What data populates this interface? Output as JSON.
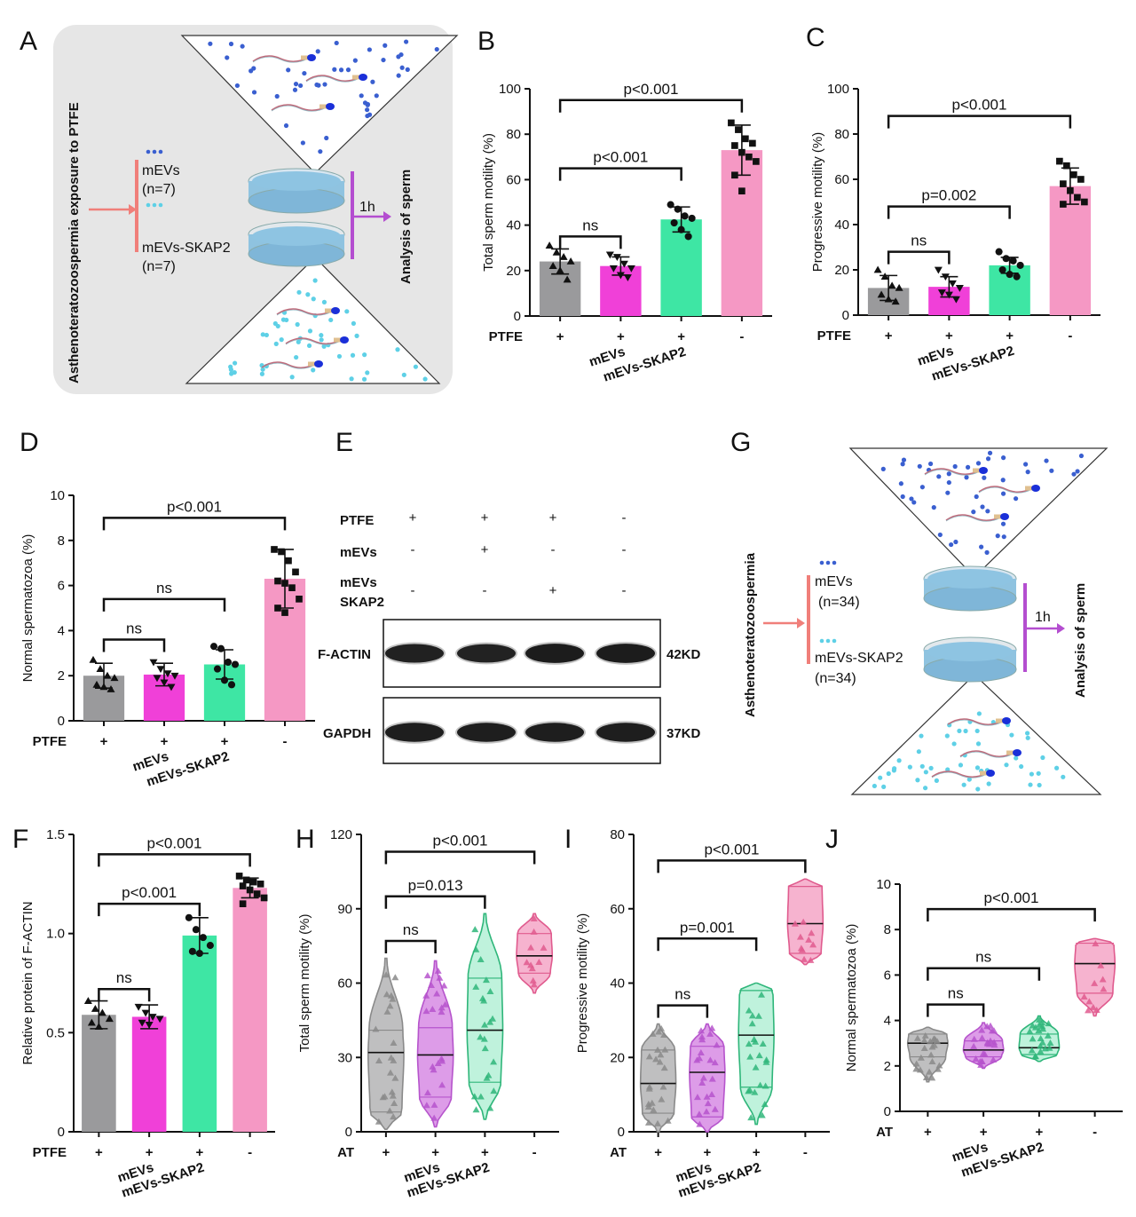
{
  "colors": {
    "PTFE": "#9a9a9c",
    "mEVs": "#f040d8",
    "mEVs-SKAP2": "#3ee6a4",
    "control": "#f598c4",
    "vGray": "#bfbfc0",
    "vPurple": "#dd9ce8",
    "vGreen": "#bff2dc",
    "vPink": "#f6b3cf",
    "vGrayEdge": "#8a8a8a",
    "vPurpleEdge": "#b654cc",
    "vGreenEdge": "#2fb67a",
    "vPinkEdge": "#e05b8e"
  },
  "panels": {
    "A": "A",
    "B": "B",
    "C": "C",
    "D": "D",
    "E": "E",
    "F": "F",
    "G": "G",
    "H": "H",
    "I": "I",
    "J": "J"
  },
  "diagramA": {
    "side_title": "Asthenoteratozoospermia exposure to PTFE",
    "group1": "mEVs",
    "group1_n": "(n=7)",
    "group2": "mEVs-SKAP2",
    "group2_n": "(n=7)",
    "time": "1h",
    "result": "Analysis of sperm"
  },
  "diagramG": {
    "side_title": "Asthenoteratozoospermia",
    "group1": "mEVs",
    "group1_n": "(n=34)",
    "group2": "mEVs-SKAP2",
    "group2_n": "(n=34)",
    "time": "1h",
    "result": "Analysis of sperm"
  },
  "blotE": {
    "rows": [
      {
        "label": "PTFE",
        "signs": [
          "+",
          "+",
          "+",
          "-"
        ]
      },
      {
        "label": "mEVs",
        "signs": [
          "-",
          "+",
          "-",
          "-"
        ]
      },
      {
        "label": "mEVs",
        "label2": "SKAP2",
        "signs": [
          "-",
          "-",
          "+",
          "-"
        ]
      }
    ],
    "bands": [
      {
        "label": "F-ACTIN",
        "size": "42KD",
        "intensity": [
          0.8,
          0.75,
          0.95,
          0.95
        ]
      },
      {
        "label": "GAPDH",
        "size": "37KD",
        "intensity": [
          0.9,
          0.9,
          0.9,
          0.9
        ]
      }
    ]
  },
  "chart_data": [
    {
      "panel": "B",
      "type": "bar",
      "ylabel": "Total sperm motility (%)",
      "ylim": [
        0,
        100
      ],
      "yticks": [
        0,
        20,
        40,
        60,
        80,
        100
      ],
      "condition_label": "PTFE",
      "condition_signs": [
        "+",
        "+",
        "+",
        "-"
      ],
      "categories": [
        "",
        "mEVs",
        "mEVs-SKAP2",
        ""
      ],
      "values": [
        24,
        22,
        42.5,
        73
      ],
      "errors": [
        5.5,
        4,
        5.5,
        11
      ],
      "points": [
        [
          31,
          28,
          26,
          24,
          22,
          20,
          16
        ],
        [
          27,
          26,
          23,
          21,
          21,
          18,
          17
        ],
        [
          49,
          47,
          44,
          43,
          41,
          38,
          35
        ],
        [
          85,
          82,
          78,
          76,
          75,
          72,
          70,
          68,
          62,
          55
        ]
      ],
      "markers": [
        "triangle",
        "triangle-down",
        "circle",
        "square"
      ],
      "comparisons": [
        {
          "a": 0,
          "b": 1,
          "label": "ns",
          "y": 35
        },
        {
          "a": 0,
          "b": 2,
          "label": "p<0.001",
          "y": 65
        },
        {
          "a": 0,
          "b": 3,
          "label": "p<0.001",
          "y": 95
        }
      ]
    },
    {
      "panel": "C",
      "type": "bar",
      "ylabel": "Progressive motility (%)",
      "ylim": [
        0,
        100
      ],
      "yticks": [
        0,
        20,
        40,
        60,
        80,
        100
      ],
      "condition_label": "PTFE",
      "condition_signs": [
        "+",
        "+",
        "+",
        "-"
      ],
      "categories": [
        "",
        "mEVs",
        "mEVs-SKAP2",
        ""
      ],
      "values": [
        12,
        12.5,
        22,
        57
      ],
      "errors": [
        5.5,
        4.5,
        3.5,
        8
      ],
      "points": [
        [
          20,
          17,
          13,
          12,
          9,
          7,
          6
        ],
        [
          20,
          17,
          14,
          12,
          10,
          9,
          7
        ],
        [
          28,
          25,
          24,
          22,
          20,
          18,
          17
        ],
        [
          68,
          66,
          62,
          60,
          58,
          55,
          52,
          50,
          49
        ]
      ],
      "markers": [
        "triangle",
        "triangle-down",
        "circle",
        "square"
      ],
      "comparisons": [
        {
          "a": 0,
          "b": 1,
          "label": "ns",
          "y": 28
        },
        {
          "a": 0,
          "b": 2,
          "label": "p=0.002",
          "y": 48
        },
        {
          "a": 0,
          "b": 3,
          "label": "p<0.001",
          "y": 88
        }
      ]
    },
    {
      "panel": "D",
      "type": "bar",
      "ylabel": "Normal spermatozoa (%)",
      "ylim": [
        0,
        10
      ],
      "yticks": [
        0,
        2,
        4,
        6,
        8,
        10
      ],
      "condition_label": "PTFE",
      "condition_signs": [
        "+",
        "+",
        "+",
        "-"
      ],
      "categories": [
        "",
        "mEVs",
        "mEVs-SKAP2",
        ""
      ],
      "values": [
        2,
        2.05,
        2.5,
        6.3
      ],
      "errors": [
        0.55,
        0.5,
        0.65,
        1.3
      ],
      "points": [
        [
          2.7,
          2.3,
          2.0,
          1.9,
          1.6,
          1.5,
          1.4
        ],
        [
          2.6,
          2.3,
          2.1,
          2.0,
          1.9,
          1.7,
          1.5
        ],
        [
          3.3,
          3.2,
          2.6,
          2.5,
          2.3,
          1.8,
          1.6
        ],
        [
          7.6,
          7.5,
          7.1,
          6.6,
          6.2,
          6.1,
          5.9,
          5.4,
          5.0,
          4.8
        ]
      ],
      "markers": [
        "triangle",
        "triangle-down",
        "circle",
        "square"
      ],
      "comparisons": [
        {
          "a": 0,
          "b": 1,
          "label": "ns",
          "y": 3.6
        },
        {
          "a": 0,
          "b": 2,
          "label": "ns",
          "y": 5.4
        },
        {
          "a": 0,
          "b": 3,
          "label": "p<0.001",
          "y": 9.0
        }
      ]
    },
    {
      "panel": "F",
      "type": "bar",
      "ylabel": "Relative protein of F-ACTIN",
      "ylim": [
        0,
        1.5
      ],
      "yticks": [
        0,
        0.5,
        1.0,
        1.5
      ],
      "yticklabels": [
        "0",
        "0.5",
        "1.0",
        "1.5"
      ],
      "condition_label": "PTFE",
      "condition_signs": [
        "+",
        "+",
        "+",
        "-"
      ],
      "categories": [
        "",
        "mEVs",
        "mEVs-SKAP2",
        ""
      ],
      "values": [
        0.59,
        0.58,
        0.99,
        1.23
      ],
      "errors": [
        0.07,
        0.06,
        0.09,
        0.05
      ],
      "points": [
        [
          0.66,
          0.62,
          0.6,
          0.57,
          0.55,
          0.53
        ],
        [
          0.63,
          0.6,
          0.58,
          0.57,
          0.55,
          0.54
        ],
        [
          1.08,
          1.02,
          0.98,
          0.94,
          0.91,
          0.9
        ],
        [
          1.29,
          1.27,
          1.26,
          1.25,
          1.24,
          1.22,
          1.2,
          1.18,
          1.15
        ]
      ],
      "markers": [
        "triangle",
        "triangle-down",
        "circle",
        "square"
      ],
      "comparisons": [
        {
          "a": 0,
          "b": 1,
          "label": "ns",
          "y": 0.72
        },
        {
          "a": 0,
          "b": 2,
          "label": "p<0.001",
          "y": 1.15
        },
        {
          "a": 0,
          "b": 3,
          "label": "p<0.001",
          "y": 1.4
        }
      ]
    },
    {
      "panel": "H",
      "type": "violin",
      "ylabel": "Total sperm motility (%)",
      "ylim": [
        0,
        120
      ],
      "yticks": [
        0,
        30,
        60,
        90,
        120
      ],
      "condition_label": "AT",
      "condition_signs": [
        "+",
        "+",
        "+",
        "-"
      ],
      "categories": [
        "",
        "mEVs",
        "mEVs-SKAP2",
        ""
      ],
      "min": [
        1,
        2,
        5,
        56
      ],
      "max": [
        70,
        69,
        88,
        88
      ],
      "q1": [
        8,
        14,
        20,
        64
      ],
      "median": [
        32,
        31,
        41,
        71
      ],
      "q3": [
        41,
        42,
        62,
        80
      ],
      "comparisons": [
        {
          "a": 0,
          "b": 1,
          "label": "ns",
          "y": 77
        },
        {
          "a": 0,
          "b": 2,
          "label": "p=0.013",
          "y": 95
        },
        {
          "a": 0,
          "b": 3,
          "label": "p<0.001",
          "y": 113
        }
      ]
    },
    {
      "panel": "I",
      "type": "violin",
      "ylabel": "Progressive motility (%)",
      "ylim": [
        0,
        80
      ],
      "yticks": [
        0,
        20,
        40,
        60,
        80
      ],
      "condition_label": "AT",
      "condition_signs": [
        "+",
        "+",
        "+",
        "-"
      ],
      "categories": [
        "",
        "mEVs",
        "mEVs-SKAP2",
        ""
      ],
      "min": [
        0,
        0,
        2,
        45
      ],
      "max": [
        29,
        29,
        40,
        68
      ],
      "q1": [
        5,
        4,
        12,
        48
      ],
      "median": [
        13,
        16,
        26,
        56
      ],
      "q3": [
        22,
        23,
        38,
        66
      ],
      "comparisons": [
        {
          "a": 0,
          "b": 1,
          "label": "ns",
          "y": 34
        },
        {
          "a": 0,
          "b": 2,
          "label": "p=0.001",
          "y": 52
        },
        {
          "a": 0,
          "b": 3,
          "label": "p<0.001",
          "y": 73
        }
      ]
    },
    {
      "panel": "J",
      "type": "violin",
      "ylabel": "Normal spermatozoa (%)",
      "ylim": [
        0,
        10
      ],
      "yticks": [
        0,
        2,
        4,
        6,
        8,
        10
      ],
      "condition_label": "AT",
      "condition_signs": [
        "+",
        "+",
        "+",
        "-"
      ],
      "categories": [
        "",
        "mEVs",
        "mEVs-SKAP2",
        ""
      ],
      "min": [
        1.3,
        1.9,
        2.2,
        4.2
      ],
      "max": [
        3.7,
        3.9,
        4.2,
        7.6
      ],
      "q1": [
        2.4,
        2.4,
        2.5,
        5.2
      ],
      "median": [
        3.0,
        2.7,
        2.8,
        6.5
      ],
      "q3": [
        3.4,
        3.1,
        3.4,
        7.4
      ],
      "comparisons": [
        {
          "a": 0,
          "b": 1,
          "label": "ns",
          "y": 4.7
        },
        {
          "a": 0,
          "b": 2,
          "label": "ns",
          "y": 6.3
        },
        {
          "a": 0,
          "b": 3,
          "label": "p<0.001",
          "y": 8.9
        }
      ]
    }
  ]
}
